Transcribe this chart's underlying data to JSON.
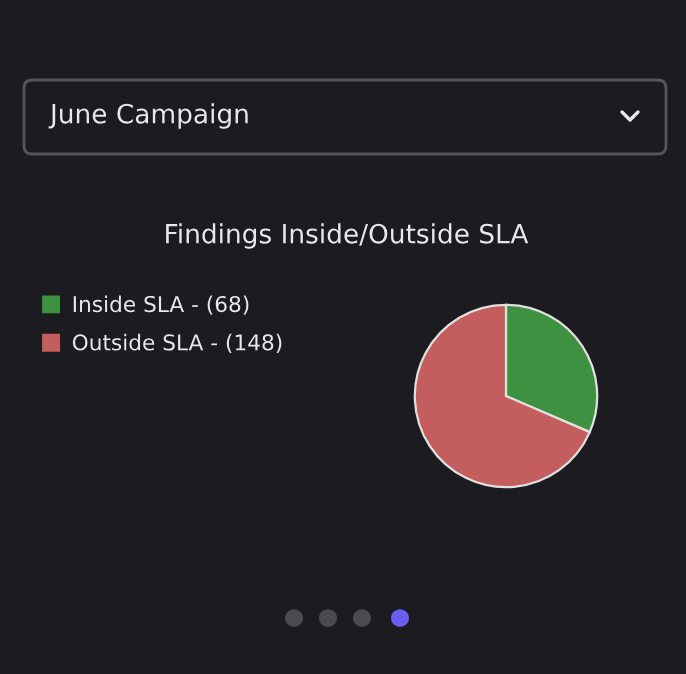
{
  "chart_data": {
    "type": "pie",
    "title": "Findings Inside/Outside SLA",
    "categories": [
      "Inside SLA - (68)",
      "Outside SLA - (148)"
    ],
    "values": [
      68,
      148
    ],
    "colors": [
      "#3e9140",
      "#c45d5d"
    ],
    "legend": "top left",
    "annotations": [
      "June Campaign"
    ]
  }
}
